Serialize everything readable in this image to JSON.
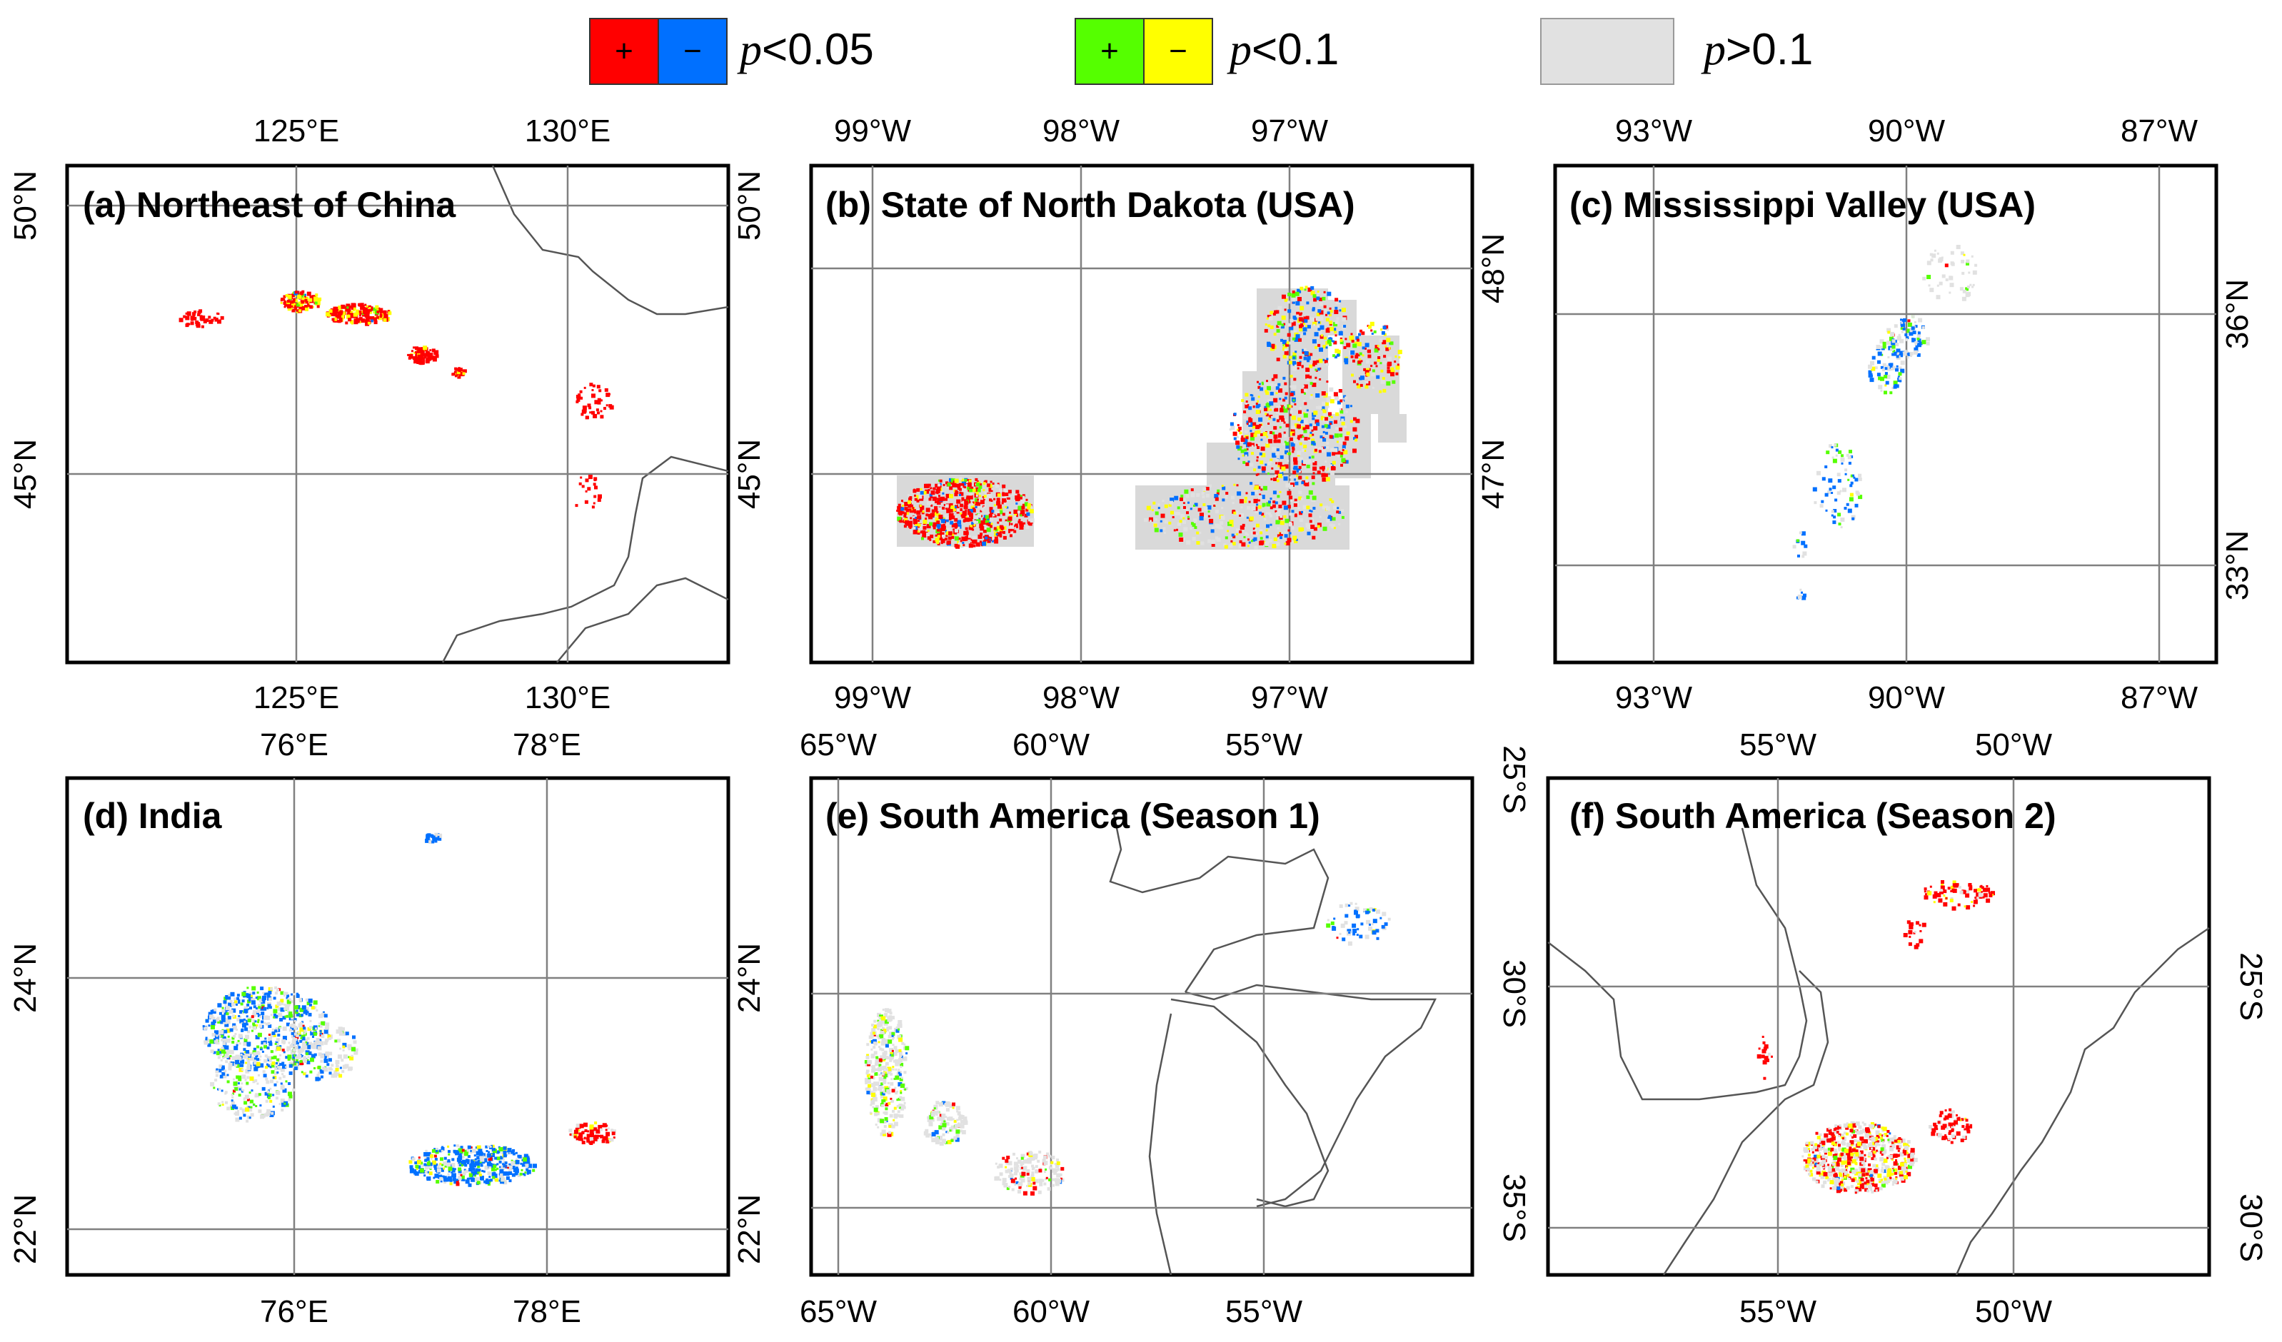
{
  "legend": {
    "sig005": {
      "plus": "+",
      "minus": "−",
      "label_p": "p",
      "label_rest": "<0.05",
      "plus_color": "#ff0000",
      "minus_color": "#0070ff"
    },
    "sig01": {
      "plus": "+",
      "minus": "−",
      "label_p": "p",
      "label_rest": "<0.1",
      "plus_color": "#55ff00",
      "minus_color": "#ffff00"
    },
    "ns": {
      "label_p": "p",
      "label_rest": ">0.1",
      "color": "#e1e1e1"
    }
  },
  "panels": [
    {
      "id": "a",
      "title": "(a) Northeast of China",
      "top_ticks": [
        "125°E",
        "130°E"
      ],
      "bottom_ticks": [
        "125°E",
        "130°E"
      ],
      "left_ticks": [
        "50°N",
        "45°N"
      ],
      "right_ticks": [
        "50°N",
        "45°N"
      ]
    },
    {
      "id": "b",
      "title": "(b) State of North Dakota (USA)",
      "top_ticks": [
        "99°W",
        "98°W",
        "97°W"
      ],
      "bottom_ticks": [
        "99°W",
        "98°W",
        "97°W"
      ],
      "left_ticks": [],
      "right_ticks": [
        "48°N",
        "47°N"
      ]
    },
    {
      "id": "c",
      "title": "(c) Mississippi Valley (USA)",
      "top_ticks": [
        "93°W",
        "90°W",
        "87°W"
      ],
      "bottom_ticks": [
        "93°W",
        "90°W",
        "87°W"
      ],
      "left_ticks": [],
      "right_ticks": [
        "36°N",
        "33°N"
      ]
    },
    {
      "id": "d",
      "title": "(d) India",
      "top_ticks": [
        "76°E",
        "78°E"
      ],
      "bottom_ticks": [
        "76°E",
        "78°E"
      ],
      "left_ticks": [
        "24°N",
        "22°N"
      ],
      "right_ticks": [
        "24°N",
        "22°N"
      ]
    },
    {
      "id": "e",
      "title": "(e) South America (Season 1)",
      "top_ticks": [
        "65°W",
        "60°W",
        "55°W"
      ],
      "bottom_ticks": [
        "65°W",
        "60°W",
        "55°W"
      ],
      "left_ticks": [],
      "right_ticks": [
        "25°S",
        "30°S",
        "35°S"
      ]
    },
    {
      "id": "f",
      "title": "(f) South America (Season 2)",
      "top_ticks": [
        "55°W",
        "50°W"
      ],
      "bottom_ticks": [
        "55°W",
        "50°W"
      ],
      "left_ticks": [],
      "right_ticks": [
        "25°S",
        "30°S"
      ]
    }
  ]
}
